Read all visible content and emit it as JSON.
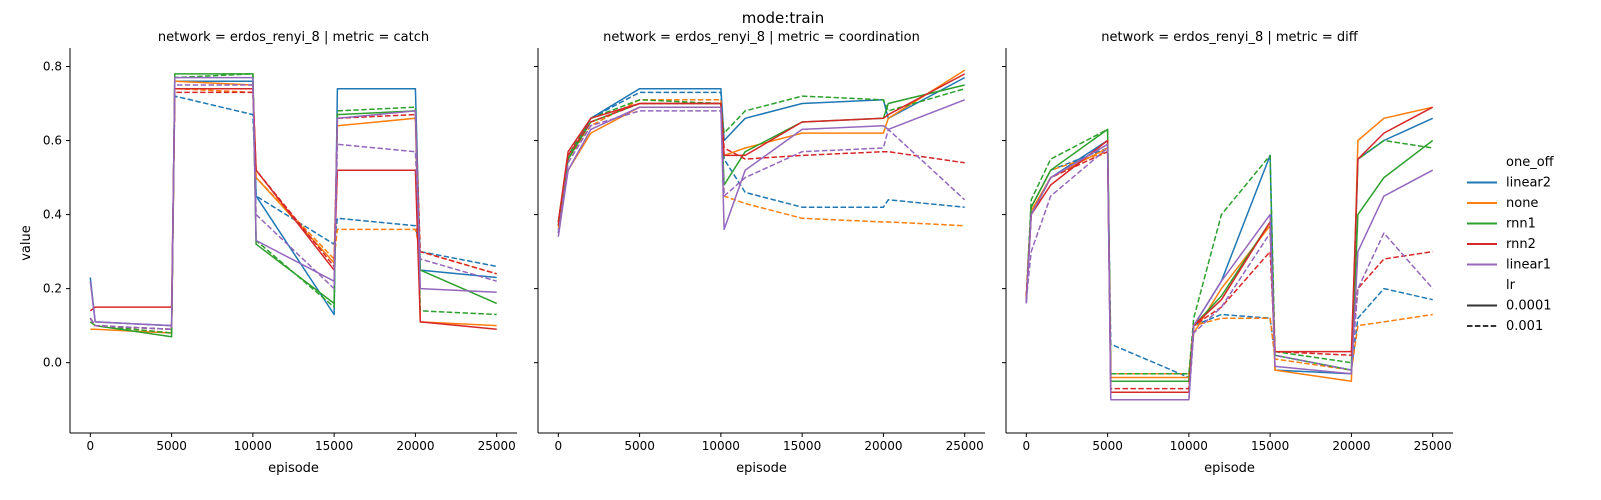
{
  "figure": {
    "suptitle": "mode:train",
    "xlabel": "episode",
    "ylabel": "value"
  },
  "legend": {
    "hue_title": "one_off",
    "style_title": "lr",
    "hue_entries": [
      {
        "label": "linear2",
        "color": "#1f77b4"
      },
      {
        "label": "none",
        "color": "#ff7f0e"
      },
      {
        "label": "rnn1",
        "color": "#2ca02c"
      },
      {
        "label": "rnn2",
        "color": "#d62728"
      },
      {
        "label": "linear1",
        "color": "#9467bd"
      }
    ],
    "style_entries": [
      {
        "label": "0.0001",
        "dash": "solid"
      },
      {
        "label": "0.001",
        "dash": "dashed"
      }
    ]
  },
  "chart_data": [
    {
      "type": "line",
      "title": "network = erdos_renyi_8 | metric = catch",
      "xlabel": "episode",
      "ylabel": "value",
      "xlim": [
        -1250,
        26250
      ],
      "ylim": [
        -0.19,
        0.85
      ],
      "xticks": [
        0,
        5000,
        10000,
        15000,
        20000,
        25000
      ],
      "yticks": [
        0.0,
        0.2,
        0.4,
        0.6,
        0.8
      ],
      "grid": false,
      "series": [
        {
          "hue": "linear2",
          "lr": "0.0001",
          "x": [
            0,
            300,
            5000,
            5200,
            10000,
            10200,
            15000,
            15200,
            20000,
            20300,
            25000
          ],
          "y": [
            0.23,
            0.11,
            0.1,
            0.76,
            0.76,
            0.45,
            0.13,
            0.74,
            0.74,
            0.25,
            0.23
          ]
        },
        {
          "hue": "linear2",
          "lr": "0.001",
          "x": [
            0,
            300,
            5000,
            5200,
            10000,
            10200,
            15000,
            15200,
            20000,
            20300,
            25000
          ],
          "y": [
            0.12,
            0.1,
            0.09,
            0.72,
            0.67,
            0.45,
            0.32,
            0.39,
            0.37,
            0.3,
            0.26
          ]
        },
        {
          "hue": "none",
          "lr": "0.0001",
          "x": [
            0,
            300,
            5000,
            5200,
            10000,
            10200,
            15000,
            15200,
            20000,
            20300,
            25000
          ],
          "y": [
            0.09,
            0.09,
            0.08,
            0.76,
            0.75,
            0.5,
            0.27,
            0.64,
            0.66,
            0.11,
            0.1
          ]
        },
        {
          "hue": "none",
          "lr": "0.001",
          "x": [
            0,
            300,
            5000,
            5200,
            10000,
            10200,
            15000,
            15200,
            20000,
            20300,
            25000
          ],
          "y": [
            0.12,
            0.1,
            0.08,
            0.74,
            0.73,
            0.5,
            0.28,
            0.36,
            0.36,
            0.3,
            0.24
          ]
        },
        {
          "hue": "rnn1",
          "lr": "0.0001",
          "x": [
            0,
            300,
            5000,
            5200,
            10000,
            10200,
            15000,
            15200,
            20000,
            20300,
            25000
          ],
          "y": [
            0.11,
            0.1,
            0.07,
            0.78,
            0.78,
            0.32,
            0.16,
            0.67,
            0.68,
            0.25,
            0.16
          ]
        },
        {
          "hue": "rnn1",
          "lr": "0.001",
          "x": [
            0,
            300,
            5000,
            5200,
            10000,
            10200,
            15000,
            15200,
            20000,
            20300,
            25000
          ],
          "y": [
            0.12,
            0.1,
            0.08,
            0.77,
            0.78,
            0.33,
            0.15,
            0.68,
            0.69,
            0.14,
            0.13
          ]
        },
        {
          "hue": "rnn2",
          "lr": "0.0001",
          "x": [
            0,
            300,
            5000,
            5200,
            10000,
            10200,
            15000,
            15200,
            20000,
            20300,
            25000
          ],
          "y": [
            0.14,
            0.15,
            0.15,
            0.74,
            0.74,
            0.52,
            0.25,
            0.52,
            0.52,
            0.11,
            0.09
          ]
        },
        {
          "hue": "rnn2",
          "lr": "0.001",
          "x": [
            0,
            300,
            5000,
            5200,
            10000,
            10200,
            15000,
            15200,
            20000,
            20300,
            25000
          ],
          "y": [
            0.12,
            0.1,
            0.09,
            0.73,
            0.73,
            0.52,
            0.26,
            0.66,
            0.67,
            0.3,
            0.24
          ]
        },
        {
          "hue": "linear1",
          "lr": "0.0001",
          "x": [
            0,
            300,
            5000,
            5200,
            10000,
            10200,
            15000,
            15200,
            20000,
            20300,
            25000
          ],
          "y": [
            0.22,
            0.11,
            0.1,
            0.77,
            0.77,
            0.33,
            0.22,
            0.66,
            0.68,
            0.2,
            0.19
          ]
        },
        {
          "hue": "linear1",
          "lr": "0.001",
          "x": [
            0,
            300,
            5000,
            5200,
            10000,
            10200,
            15000,
            15200,
            20000,
            20300,
            25000
          ],
          "y": [
            0.12,
            0.1,
            0.09,
            0.75,
            0.75,
            0.4,
            0.2,
            0.59,
            0.57,
            0.28,
            0.22
          ]
        }
      ]
    },
    {
      "type": "line",
      "title": "network = erdos_renyi_8 | metric = coordination",
      "xlabel": "episode",
      "ylabel": "",
      "xlim": [
        -1250,
        26250
      ],
      "ylim": [
        -0.19,
        0.85
      ],
      "xticks": [
        0,
        5000,
        10000,
        15000,
        20000,
        25000
      ],
      "yticks": [
        0.0,
        0.2,
        0.4,
        0.6,
        0.8
      ],
      "grid": false,
      "series": [
        {
          "hue": "linear2",
          "lr": "0.0001",
          "x": [
            0,
            600,
            2000,
            5000,
            10000,
            10200,
            11500,
            15000,
            20000,
            20300,
            25000
          ],
          "y": [
            0.35,
            0.55,
            0.66,
            0.74,
            0.74,
            0.6,
            0.66,
            0.7,
            0.71,
            0.66,
            0.77
          ]
        },
        {
          "hue": "linear2",
          "lr": "0.001",
          "x": [
            0,
            600,
            2000,
            5000,
            10000,
            10200,
            11500,
            15000,
            20000,
            20300,
            25000
          ],
          "y": [
            0.38,
            0.55,
            0.66,
            0.73,
            0.73,
            0.55,
            0.46,
            0.42,
            0.42,
            0.44,
            0.42
          ]
        },
        {
          "hue": "none",
          "lr": "0.0001",
          "x": [
            0,
            600,
            2000,
            5000,
            10000,
            10200,
            11500,
            15000,
            20000,
            20300,
            25000
          ],
          "y": [
            0.36,
            0.52,
            0.62,
            0.69,
            0.69,
            0.56,
            0.58,
            0.62,
            0.62,
            0.66,
            0.79
          ]
        },
        {
          "hue": "none",
          "lr": "0.001",
          "x": [
            0,
            600,
            2000,
            5000,
            10000,
            10200,
            11500,
            15000,
            20000,
            20300,
            25000
          ],
          "y": [
            0.37,
            0.55,
            0.64,
            0.71,
            0.71,
            0.45,
            0.43,
            0.39,
            0.38,
            0.38,
            0.37
          ]
        },
        {
          "hue": "rnn1",
          "lr": "0.0001",
          "x": [
            0,
            600,
            2000,
            5000,
            10000,
            10200,
            11500,
            15000,
            20000,
            20300,
            25000
          ],
          "y": [
            0.37,
            0.55,
            0.65,
            0.7,
            0.7,
            0.48,
            0.57,
            0.65,
            0.66,
            0.7,
            0.75
          ]
        },
        {
          "hue": "rnn1",
          "lr": "0.001",
          "x": [
            0,
            600,
            2000,
            5000,
            10000,
            10200,
            11500,
            15000,
            20000,
            20300,
            25000
          ],
          "y": [
            0.38,
            0.56,
            0.66,
            0.71,
            0.7,
            0.62,
            0.68,
            0.72,
            0.71,
            0.68,
            0.74
          ]
        },
        {
          "hue": "rnn2",
          "lr": "0.0001",
          "x": [
            0,
            600,
            2000,
            5000,
            10000,
            10200,
            11500,
            15000,
            20000,
            20300,
            25000
          ],
          "y": [
            0.38,
            0.57,
            0.66,
            0.7,
            0.7,
            0.56,
            0.56,
            0.65,
            0.66,
            0.67,
            0.78
          ]
        },
        {
          "hue": "rnn2",
          "lr": "0.001",
          "x": [
            0,
            600,
            2000,
            5000,
            10000,
            10200,
            11500,
            15000,
            20000,
            20300,
            25000
          ],
          "y": [
            0.37,
            0.56,
            0.65,
            0.7,
            0.7,
            0.58,
            0.55,
            0.56,
            0.57,
            0.57,
            0.54
          ]
        },
        {
          "hue": "linear1",
          "lr": "0.0001",
          "x": [
            0,
            600,
            2000,
            5000,
            10000,
            10200,
            11500,
            15000,
            20000,
            20300,
            25000
          ],
          "y": [
            0.34,
            0.52,
            0.63,
            0.69,
            0.69,
            0.36,
            0.52,
            0.63,
            0.64,
            0.63,
            0.71
          ]
        },
        {
          "hue": "linear1",
          "lr": "0.001",
          "x": [
            0,
            600,
            2000,
            5000,
            10000,
            10200,
            11500,
            15000,
            20000,
            20300,
            25000
          ],
          "y": [
            0.35,
            0.54,
            0.64,
            0.68,
            0.68,
            0.45,
            0.5,
            0.57,
            0.58,
            0.63,
            0.44
          ]
        }
      ]
    },
    {
      "type": "line",
      "title": "network = erdos_renyi_8 | metric = diff",
      "xlabel": "episode",
      "ylabel": "",
      "xlim": [
        -1250,
        26250
      ],
      "ylim": [
        -0.19,
        0.85
      ],
      "xticks": [
        0,
        5000,
        10000,
        15000,
        20000,
        25000
      ],
      "yticks": [
        0.0,
        0.2,
        0.4,
        0.6,
        0.8
      ],
      "grid": false,
      "series": [
        {
          "hue": "linear2",
          "lr": "0.0001",
          "x": [
            0,
            300,
            1500,
            5000,
            5200,
            10000,
            10300,
            12000,
            15000,
            15300,
            20000,
            20400,
            22000,
            25000
          ],
          "y": [
            0.16,
            0.4,
            0.5,
            0.6,
            -0.05,
            -0.05,
            0.1,
            0.22,
            0.56,
            -0.02,
            -0.03,
            0.55,
            0.6,
            0.66
          ]
        },
        {
          "hue": "linear2",
          "lr": "0.001",
          "x": [
            0,
            300,
            1500,
            5000,
            5200,
            10000,
            10300,
            12000,
            15000,
            15300,
            20000,
            20400,
            22000,
            25000
          ],
          "y": [
            0.17,
            0.42,
            0.52,
            0.58,
            0.05,
            -0.04,
            0.1,
            0.13,
            0.12,
            0.02,
            -0.02,
            0.12,
            0.2,
            0.17
          ]
        },
        {
          "hue": "none",
          "lr": "0.0001",
          "x": [
            0,
            300,
            1500,
            5000,
            5200,
            10000,
            10300,
            12000,
            15000,
            15300,
            20000,
            20400,
            22000,
            25000
          ],
          "y": [
            0.17,
            0.41,
            0.5,
            0.58,
            -0.04,
            -0.04,
            0.08,
            0.2,
            0.37,
            -0.02,
            -0.05,
            0.6,
            0.66,
            0.69
          ]
        },
        {
          "hue": "none",
          "lr": "0.001",
          "x": [
            0,
            300,
            1500,
            5000,
            5200,
            10000,
            10300,
            12000,
            15000,
            15300,
            20000,
            20400,
            22000,
            25000
          ],
          "y": [
            0.18,
            0.42,
            0.52,
            0.57,
            -0.03,
            -0.03,
            0.1,
            0.12,
            0.12,
            0.01,
            -0.02,
            0.1,
            0.11,
            0.13
          ]
        },
        {
          "hue": "rnn1",
          "lr": "0.0001",
          "x": [
            0,
            300,
            1500,
            5000,
            5200,
            10000,
            10300,
            12000,
            15000,
            15300,
            20000,
            20400,
            22000,
            25000
          ],
          "y": [
            0.17,
            0.42,
            0.52,
            0.63,
            -0.05,
            -0.05,
            0.1,
            0.18,
            0.38,
            0.02,
            -0.02,
            0.4,
            0.5,
            0.6
          ]
        },
        {
          "hue": "rnn1",
          "lr": "0.001",
          "x": [
            0,
            300,
            1500,
            5000,
            5200,
            10000,
            10300,
            12000,
            15000,
            15300,
            20000,
            20400,
            22000,
            25000
          ],
          "y": [
            0.18,
            0.44,
            0.55,
            0.63,
            -0.03,
            -0.03,
            0.12,
            0.4,
            0.56,
            0.03,
            0.0,
            0.55,
            0.6,
            0.58
          ]
        },
        {
          "hue": "rnn2",
          "lr": "0.0001",
          "x": [
            0,
            300,
            1500,
            5000,
            5200,
            10000,
            10300,
            12000,
            15000,
            15300,
            20000,
            20400,
            22000,
            25000
          ],
          "y": [
            0.17,
            0.4,
            0.48,
            0.6,
            -0.08,
            -0.08,
            0.1,
            0.17,
            0.38,
            0.03,
            0.03,
            0.55,
            0.62,
            0.69
          ]
        },
        {
          "hue": "rnn2",
          "lr": "0.001",
          "x": [
            0,
            300,
            1500,
            5000,
            5200,
            10000,
            10300,
            12000,
            15000,
            15300,
            20000,
            20400,
            22000,
            25000
          ],
          "y": [
            0.18,
            0.4,
            0.5,
            0.57,
            -0.07,
            -0.07,
            0.1,
            0.15,
            0.3,
            0.03,
            0.02,
            0.2,
            0.28,
            0.3
          ]
        },
        {
          "hue": "linear1",
          "lr": "0.0001",
          "x": [
            0,
            300,
            1500,
            5000,
            5200,
            10000,
            10300,
            12000,
            15000,
            15300,
            20000,
            20400,
            22000,
            25000
          ],
          "y": [
            0.16,
            0.4,
            0.5,
            0.59,
            -0.1,
            -0.1,
            0.1,
            0.22,
            0.4,
            -0.01,
            -0.03,
            0.3,
            0.45,
            0.52
          ]
        },
        {
          "hue": "linear1",
          "lr": "0.001",
          "x": [
            0,
            300,
            1500,
            5000,
            5200,
            10000,
            10300,
            12000,
            15000,
            15300,
            20000,
            20400,
            22000,
            25000
          ],
          "y": [
            0.17,
            0.3,
            0.45,
            0.58,
            -0.1,
            -0.1,
            0.08,
            0.15,
            0.35,
            0.02,
            -0.02,
            0.2,
            0.35,
            0.2
          ]
        }
      ]
    }
  ]
}
